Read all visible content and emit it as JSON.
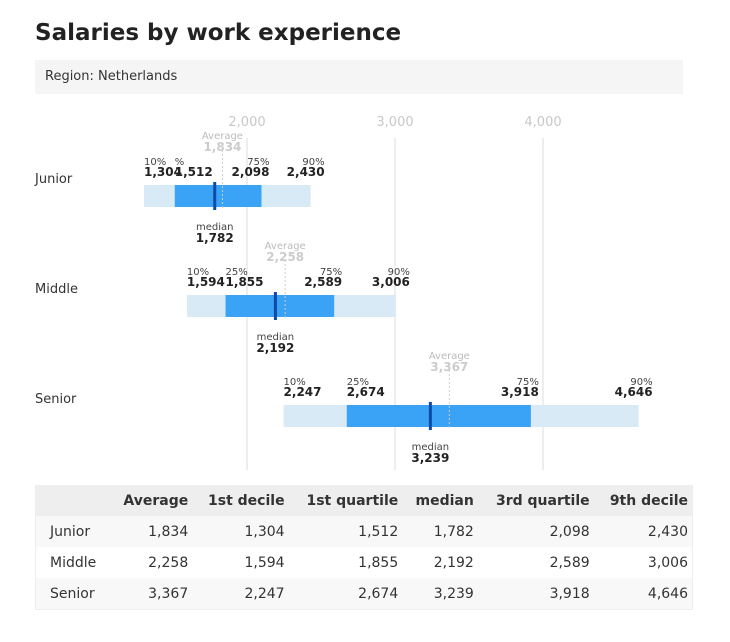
{
  "title": "Salaries by work experience",
  "region": "Region: Netherlands",
  "colors": {
    "whisker": "#d9eaf7",
    "box": "#3aa3f5",
    "median": "#0d4aa8",
    "grid": "#dddddd",
    "average": "#bbbbbb"
  },
  "chart_data": {
    "type": "box",
    "xlim": [
      1200,
      4750
    ],
    "xticks": [
      "2,000",
      "3,000",
      "4,000"
    ],
    "xtick_values": [
      2000,
      3000,
      4000
    ],
    "percent_labels": {
      "p10": "10%",
      "q1": "25%",
      "q3": "75%",
      "p90": "90%"
    },
    "junior_q1_label": "%",
    "median_label": "median",
    "average_label": "Average",
    "categories": [
      "Junior",
      "Middle",
      "Senior"
    ],
    "rows": [
      {
        "name": "Junior",
        "average": 1834,
        "p10": 1304,
        "q1": 1512,
        "median": 1782,
        "q3": 2098,
        "p90": 2430,
        "labels": {
          "average": "1,834",
          "p10": "1,304",
          "q1": "1,512",
          "median": "1,782",
          "q3": "2,098",
          "p90": "2,430"
        }
      },
      {
        "name": "Middle",
        "average": 2258,
        "p10": 1594,
        "q1": 1855,
        "median": 2192,
        "q3": 2589,
        "p90": 3006,
        "labels": {
          "average": "2,258",
          "p10": "1,594",
          "q1": "1,855",
          "median": "2,192",
          "q3": "2,589",
          "p90": "3,006"
        }
      },
      {
        "name": "Senior",
        "average": 3367,
        "p10": 2247,
        "q1": 2674,
        "median": 3239,
        "q3": 3918,
        "p90": 4646,
        "labels": {
          "average": "3,367",
          "p10": "2,247",
          "q1": "2,674",
          "median": "3,239",
          "q3": "3,918",
          "p90": "4,646"
        }
      }
    ]
  },
  "table": {
    "headers": [
      "",
      "Average",
      "1st decile",
      "1st quartile",
      "median",
      "3rd quartile",
      "9th decile"
    ],
    "rows": [
      [
        "Junior",
        "1,834",
        "1,304",
        "1,512",
        "1,782",
        "2,098",
        "2,430"
      ],
      [
        "Middle",
        "2,258",
        "1,594",
        "1,855",
        "2,192",
        "2,589",
        "3,006"
      ],
      [
        "Senior",
        "3,367",
        "2,247",
        "2,674",
        "3,239",
        "3,918",
        "4,646"
      ]
    ]
  }
}
